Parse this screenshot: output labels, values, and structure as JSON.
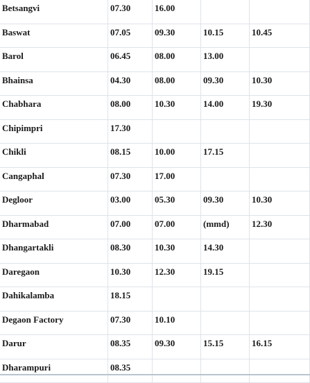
{
  "timetable": {
    "rows": [
      {
        "place": "Betsangvi",
        "times": [
          "07.30",
          "16.00",
          "",
          ""
        ]
      },
      {
        "place": "Baswat",
        "times": [
          "07.05",
          "09.30",
          "10.15",
          "10.45"
        ]
      },
      {
        "place": "Barol",
        "times": [
          "06.45",
          "08.00",
          "13.00",
          ""
        ]
      },
      {
        "place": "Bhainsa",
        "times": [
          "04.30",
          "08.00",
          "09.30",
          "10.30"
        ]
      },
      {
        "place": "Chabhara",
        "times": [
          "08.00",
          "10.30",
          "14.00",
          "19.30"
        ]
      },
      {
        "place": "Chipimpri",
        "times": [
          "17.30",
          "",
          "",
          ""
        ]
      },
      {
        "place": "Chikli",
        "times": [
          "08.15",
          "10.00",
          "17.15",
          ""
        ]
      },
      {
        "place": "Cangaphal",
        "times": [
          "07.30",
          "17.00",
          "",
          ""
        ]
      },
      {
        "place": "Degloor",
        "times": [
          "03.00",
          "05.30",
          "09.30",
          "10.30"
        ]
      },
      {
        "place": "Dharmabad",
        "times": [
          "07.00",
          "07.00",
          "(mmd)",
          "12.30"
        ]
      },
      {
        "place": "Dhangartakli",
        "times": [
          "08.30",
          "10.30",
          "14.30",
          ""
        ]
      },
      {
        "place": "Daregaon",
        "times": [
          "10.30",
          "12.30",
          "19.15",
          ""
        ]
      },
      {
        "place": "Dahikalamba",
        "times": [
          "18.15",
          "",
          "",
          ""
        ]
      },
      {
        "place": "Degaon Factory",
        "times": [
          "07.30",
          "10.10",
          "",
          ""
        ]
      },
      {
        "place": "Darur",
        "times": [
          "08.35",
          "09.30",
          "15.15",
          "16.15"
        ]
      },
      {
        "place": "Dharampuri",
        "times": [
          "08.35",
          "",
          "",
          ""
        ]
      }
    ]
  },
  "colors": {
    "grid_line": "#dde3ea",
    "text": "#1a1a1a"
  }
}
